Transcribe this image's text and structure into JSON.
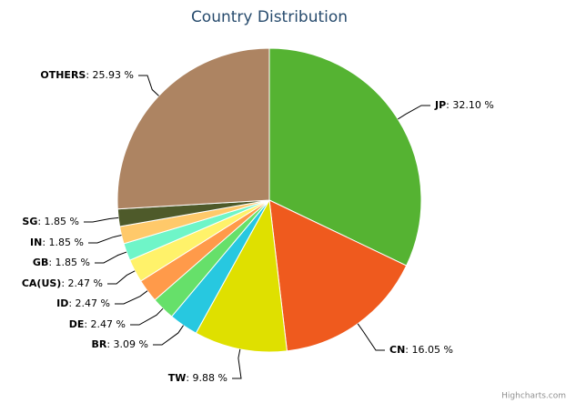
{
  "chart_data": {
    "type": "pie",
    "title": "Country Distribution",
    "categories": [
      "JP",
      "CN",
      "TW",
      "BR",
      "DE",
      "ID",
      "CA(US)",
      "GB",
      "IN",
      "SG",
      "OTHERS"
    ],
    "values": [
      32.1,
      16.05,
      9.88,
      3.09,
      2.47,
      2.47,
      2.47,
      1.85,
      1.85,
      1.85,
      25.93
    ],
    "value_labels": [
      "32.10 %",
      "16.05 %",
      "9.88 %",
      "3.09 %",
      "2.47 %",
      "2.47 %",
      "2.47 %",
      "1.85 %",
      "1.85 %",
      "1.85 %",
      "25.93 %"
    ],
    "label_separator": ": ",
    "colors": [
      "#55b332",
      "#ef5a1e",
      "#dfe000",
      "#27c8e0",
      "#66e06a",
      "#ff9a4a",
      "#fff26a",
      "#6ff5c8",
      "#ffc96a",
      "#4e5a2a",
      "#ad8462"
    ],
    "credits": "Highcharts.com"
  }
}
